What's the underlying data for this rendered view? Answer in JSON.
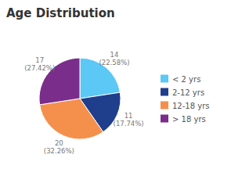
{
  "chart_data": {
    "type": "pie",
    "title": "Age Distribution",
    "categories": [
      "< 2 yrs",
      "2-12 yrs",
      "12-18 yrs",
      "> 18 yrs"
    ],
    "values": [
      22.58,
      17.74,
      32.26,
      27.42
    ],
    "value_labels": [
      "14\n(22.58%)",
      "11\n(17.74%)",
      "20\n(32.26%)",
      "17\n(27.42%)"
    ],
    "colors": [
      "#5BC8F5",
      "#1F3E8C",
      "#F5904C",
      "#7B2D8B"
    ],
    "data_labels": true,
    "legend": "right"
  }
}
